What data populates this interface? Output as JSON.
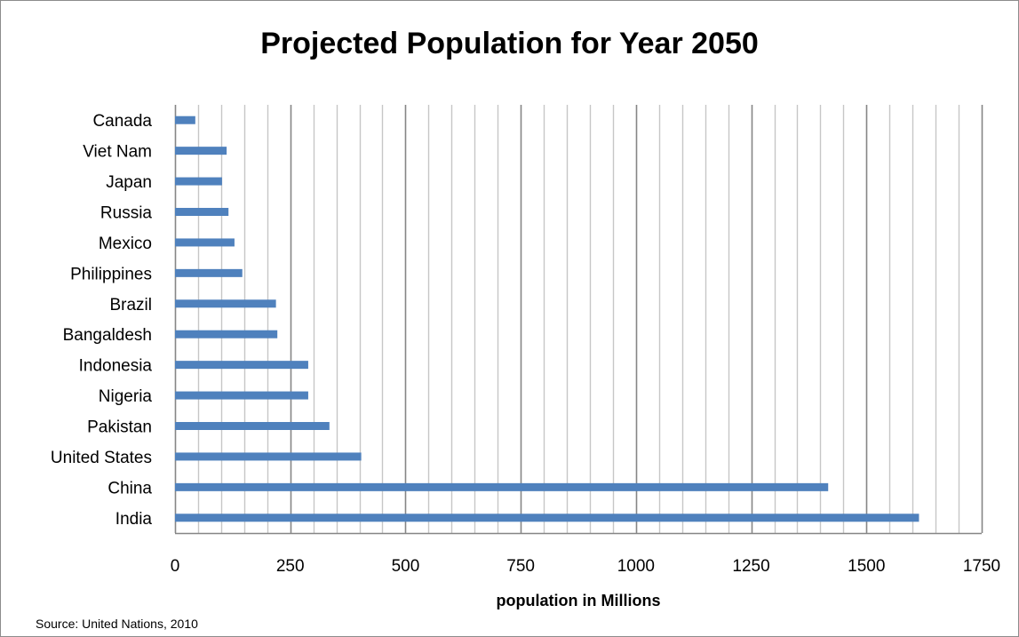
{
  "chart_data": {
    "type": "bar",
    "orientation": "horizontal",
    "title": "Projected Population for Year 2050",
    "xlabel": "population in Millions",
    "ylabel": "",
    "categories": [
      "Canada",
      "Viet Nam",
      "Japan",
      "Russia",
      "Mexico",
      "Philippines",
      "Brazil",
      "Bangaldesh",
      "Indonesia",
      "Nigeria",
      "Pakistan",
      "United States",
      "China",
      "India"
    ],
    "series": [
      {
        "values": [
          44,
          112,
          102,
          116,
          129,
          146,
          219,
          222,
          289,
          289,
          335,
          404,
          1417,
          1614
        ]
      }
    ],
    "xlim": [
      0,
      1750
    ],
    "ticks": [
      0,
      250,
      500,
      750,
      1000,
      1250,
      1500,
      1750
    ],
    "tick_labels": [
      "0",
      "250",
      "500",
      "750",
      "1000",
      "1250",
      "1500",
      "1750"
    ],
    "minor_grid_step": 50,
    "grid": true,
    "legend": "none",
    "bar_color": "#4f81bd",
    "major_grid_color": "#868686",
    "minor_grid_color": "#c6c6c6"
  },
  "source_note": "Source: United Nations, 2010"
}
